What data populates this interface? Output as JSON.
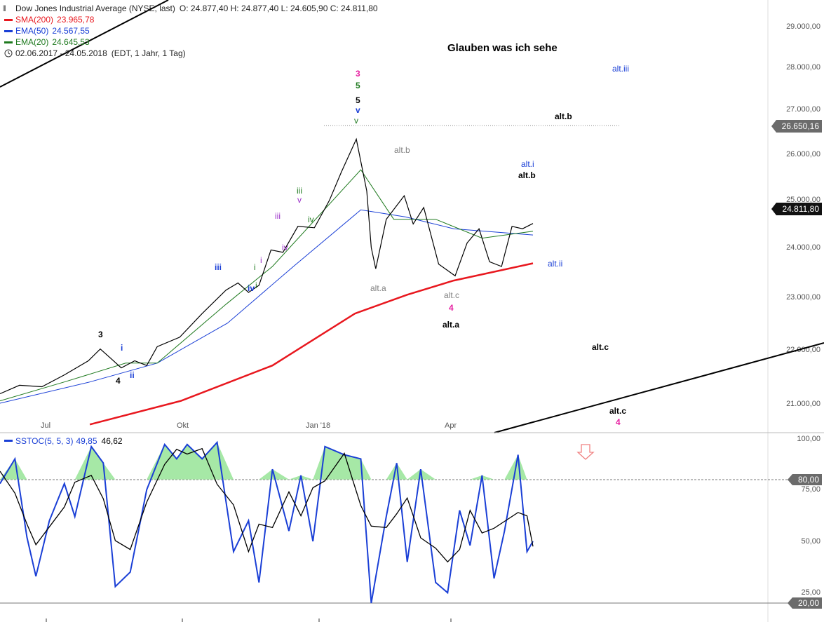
{
  "header": {
    "instrument": "Dow Jones Industrial Average (NYSE, last)",
    "ohlc": "O: 24.877,40  H: 24.877,40  L: 24.605,90  C: 24.811,80",
    "sma200_label": "SMA(200)",
    "sma200_value": "23.965,78",
    "ema50_label": "EMA(50)",
    "ema50_value": "24.567,55",
    "ema20_label": "EMA(20)",
    "ema20_value": "24.645,53",
    "range": "02.06.2017 - 24.05.2018",
    "range_info": "(EDT, 1 Jahr, 1 Tag)"
  },
  "title": "Glauben was ich sehe",
  "colors": {
    "sma200": "#e8171e",
    "ema50": "#1a3fd6",
    "ema20": "#1f7a1f",
    "stoch_k": "#1a3fd6",
    "stoch_d": "#000000",
    "overbought_fill": "#a6e8a6",
    "price_box": "#6b6b6b",
    "last_box": "#111111",
    "magenta": "#e61ea0",
    "purple": "#9b30c8",
    "green": "#1f7a1f",
    "blue": "#1a3fd6",
    "gray": "#808080",
    "arrow": "#f08080"
  },
  "chart_data": [
    {
      "type": "line",
      "name": "price",
      "y_ticks": [
        "21.000,00",
        "22.000,00",
        "23.000,00",
        "24.000,00",
        "25.000,00",
        "26.000,00",
        "27.000,00",
        "28.000,00",
        "29.000,00"
      ],
      "x_ticks": [
        "Jul",
        "Okt",
        "Jan '18",
        "Apr"
      ],
      "ylim": [
        20500,
        29300
      ],
      "marked_levels": {
        "resistance": "26.650,16",
        "last": "24.811,80"
      },
      "price_series": [
        {
          "x": "2017-06-02",
          "y": 21200
        },
        {
          "x": "2017-06-15",
          "y": 21380
        },
        {
          "x": "2017-06-30",
          "y": 21350
        },
        {
          "x": "2017-07-15",
          "y": 21600
        },
        {
          "x": "2017-07-31",
          "y": 21900
        },
        {
          "x": "2017-08-08",
          "y": 22150
        },
        {
          "x": "2017-08-15",
          "y": 21950
        },
        {
          "x": "2017-08-22",
          "y": 21750
        },
        {
          "x": "2017-08-31",
          "y": 21900
        },
        {
          "x": "2017-09-08",
          "y": 21800
        },
        {
          "x": "2017-09-15",
          "y": 22200
        },
        {
          "x": "2017-09-30",
          "y": 22400
        },
        {
          "x": "2017-10-15",
          "y": 22900
        },
        {
          "x": "2017-10-31",
          "y": 23400
        },
        {
          "x": "2017-11-08",
          "y": 23550
        },
        {
          "x": "2017-11-15",
          "y": 23350
        },
        {
          "x": "2017-11-22",
          "y": 23500
        },
        {
          "x": "2017-11-30",
          "y": 24250
        },
        {
          "x": "2017-12-08",
          "y": 24200
        },
        {
          "x": "2017-12-18",
          "y": 24750
        },
        {
          "x": "2017-12-29",
          "y": 24720
        },
        {
          "x": "2018-01-08",
          "y": 25300
        },
        {
          "x": "2018-01-16",
          "y": 25900
        },
        {
          "x": "2018-01-26",
          "y": 26600
        },
        {
          "x": "2018-02-02",
          "y": 25500
        },
        {
          "x": "2018-02-05",
          "y": 24300
        },
        {
          "x": "2018-02-08",
          "y": 23850
        },
        {
          "x": "2018-02-15",
          "y": 24900
        },
        {
          "x": "2018-02-27",
          "y": 25400
        },
        {
          "x": "2018-03-05",
          "y": 24800
        },
        {
          "x": "2018-03-12",
          "y": 25150
        },
        {
          "x": "2018-03-22",
          "y": 23950
        },
        {
          "x": "2018-04-02",
          "y": 23700
        },
        {
          "x": "2018-04-10",
          "y": 24400
        },
        {
          "x": "2018-04-18",
          "y": 24700
        },
        {
          "x": "2018-04-25",
          "y": 24000
        },
        {
          "x": "2018-05-03",
          "y": 23900
        },
        {
          "x": "2018-05-10",
          "y": 24750
        },
        {
          "x": "2018-05-17",
          "y": 24700
        },
        {
          "x": "2018-05-24",
          "y": 24811
        }
      ],
      "sma200_series": [
        {
          "x": "2017-08-01",
          "y": 20550
        },
        {
          "x": "2017-10-01",
          "y": 21050
        },
        {
          "x": "2017-12-01",
          "y": 21800
        },
        {
          "x": "2018-01-25",
          "y": 22900
        },
        {
          "x": "2018-03-01",
          "y": 23300
        },
        {
          "x": "2018-04-01",
          "y": 23600
        },
        {
          "x": "2018-05-24",
          "y": 23966
        }
      ],
      "ema50_series": [
        {
          "x": "2017-06-02",
          "y": 21000
        },
        {
          "x": "2017-08-01",
          "y": 21450
        },
        {
          "x": "2017-09-15",
          "y": 21850
        },
        {
          "x": "2017-11-01",
          "y": 22700
        },
        {
          "x": "2017-12-15",
          "y": 23900
        },
        {
          "x": "2018-01-29",
          "y": 25100
        },
        {
          "x": "2018-02-28",
          "y": 24950
        },
        {
          "x": "2018-04-01",
          "y": 24700
        },
        {
          "x": "2018-05-24",
          "y": 24568
        }
      ],
      "ema20_series": [
        {
          "x": "2017-06-02",
          "y": 21050
        },
        {
          "x": "2017-07-15",
          "y": 21450
        },
        {
          "x": "2017-08-25",
          "y": 21850
        },
        {
          "x": "2017-09-15",
          "y": 21850
        },
        {
          "x": "2017-10-31",
          "y": 23100
        },
        {
          "x": "2017-12-01",
          "y": 23900
        },
        {
          "x": "2018-01-29",
          "y": 25950
        },
        {
          "x": "2018-02-20",
          "y": 24900
        },
        {
          "x": "2018-03-20",
          "y": 24900
        },
        {
          "x": "2018-04-20",
          "y": 24500
        },
        {
          "x": "2018-05-24",
          "y": 24646
        }
      ]
    },
    {
      "type": "line",
      "name": "stochastic",
      "label": "SSTOC(5, 5, 3)",
      "k_value": "49,85",
      "d_value": "46,62",
      "y_ticks": [
        "25,00",
        "50,00",
        "75,00",
        "100,00"
      ],
      "levels": {
        "upper": "80,00",
        "lower": "20,00"
      },
      "ylim": [
        15,
        100
      ],
      "k_series": [
        {
          "x": "2017-06-02",
          "y": 78
        },
        {
          "x": "2017-06-12",
          "y": 90
        },
        {
          "x": "2017-06-20",
          "y": 52
        },
        {
          "x": "2017-06-26",
          "y": 33
        },
        {
          "x": "2017-07-05",
          "y": 60
        },
        {
          "x": "2017-07-15",
          "y": 78
        },
        {
          "x": "2017-07-22",
          "y": 62
        },
        {
          "x": "2017-08-02",
          "y": 96
        },
        {
          "x": "2017-08-10",
          "y": 88
        },
        {
          "x": "2017-08-18",
          "y": 28
        },
        {
          "x": "2017-08-28",
          "y": 35
        },
        {
          "x": "2017-09-08",
          "y": 75
        },
        {
          "x": "2017-09-20",
          "y": 97
        },
        {
          "x": "2017-09-28",
          "y": 90
        },
        {
          "x": "2017-10-05",
          "y": 97
        },
        {
          "x": "2017-10-15",
          "y": 90
        },
        {
          "x": "2017-10-25",
          "y": 98
        },
        {
          "x": "2017-11-05",
          "y": 45
        },
        {
          "x": "2017-11-15",
          "y": 60
        },
        {
          "x": "2017-11-22",
          "y": 30
        },
        {
          "x": "2017-12-01",
          "y": 85
        },
        {
          "x": "2017-12-12",
          "y": 55
        },
        {
          "x": "2017-12-20",
          "y": 82
        },
        {
          "x": "2017-12-28",
          "y": 50
        },
        {
          "x": "2018-01-05",
          "y": 96
        },
        {
          "x": "2018-01-18",
          "y": 92
        },
        {
          "x": "2018-01-29",
          "y": 90
        },
        {
          "x": "2018-02-05",
          "y": 20
        },
        {
          "x": "2018-02-15",
          "y": 62
        },
        {
          "x": "2018-02-22",
          "y": 88
        },
        {
          "x": "2018-03-01",
          "y": 40
        },
        {
          "x": "2018-03-10",
          "y": 85
        },
        {
          "x": "2018-03-20",
          "y": 30
        },
        {
          "x": "2018-03-28",
          "y": 25
        },
        {
          "x": "2018-04-05",
          "y": 65
        },
        {
          "x": "2018-04-12",
          "y": 48
        },
        {
          "x": "2018-04-20",
          "y": 82
        },
        {
          "x": "2018-04-28",
          "y": 32
        },
        {
          "x": "2018-05-05",
          "y": 55
        },
        {
          "x": "2018-05-14",
          "y": 92
        },
        {
          "x": "2018-05-20",
          "y": 45
        },
        {
          "x": "2018-05-24",
          "y": 50
        }
      ]
    }
  ],
  "annotations": {
    "wave_3_magenta": "3",
    "wave_5_green": "5",
    "wave_5_black": "5",
    "wave_v_blue": "v",
    "wave_v_green": "v",
    "wave_iii_green": "iii",
    "wave_v_purple": "v",
    "wave_iv_green": "iv",
    "wave_iii_purple": "iii",
    "wave_iv_purple": "iv",
    "wave_i_purple": "i",
    "wave_i_green": "i",
    "wave_iii_blue": "iii",
    "wave_iv_blue": "iv",
    "wave_i_green2": "i",
    "wave_3_black": "3",
    "wave_i_blue": "i",
    "wave_4_black": "4",
    "wave_ii_blue": "ii",
    "alt_a_gray": "alt.a",
    "alt_b_gray": "alt.b",
    "alt_c_gray": "alt.c",
    "wave_4_magenta": "4",
    "alt_a_black": "alt.a",
    "alt_b_black_top": "alt.b",
    "alt_i_blue": "alt.i",
    "alt_b_black": "alt.b",
    "alt_ii_blue": "alt.ii",
    "alt_iii_blue": "alt.iii",
    "alt_c_black": "alt.c",
    "alt_c_black2": "alt.c",
    "wave_4_magenta2": "4"
  }
}
